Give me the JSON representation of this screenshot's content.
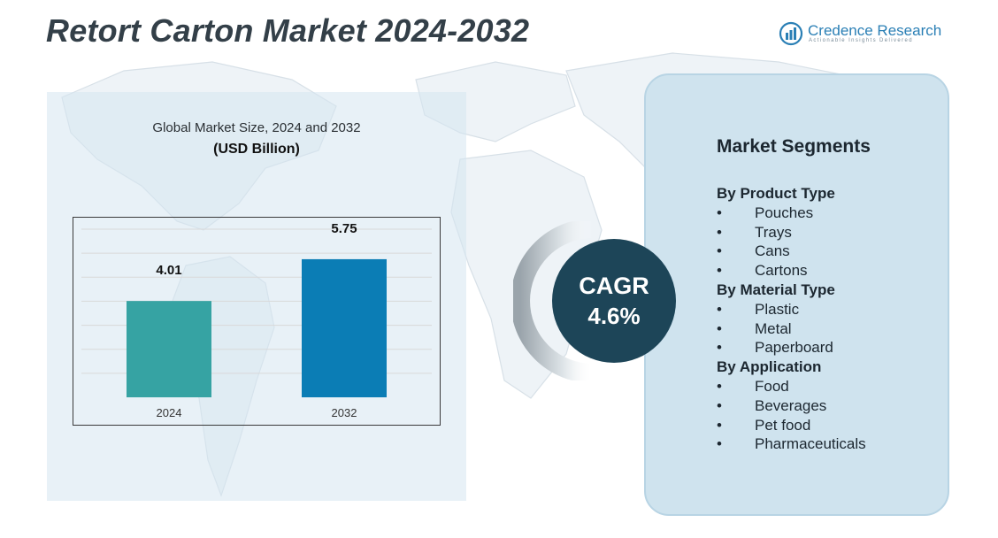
{
  "title": "Retort Carton Market 2024-2032",
  "logo": {
    "name": "Credence Research",
    "tagline": "Actionable Insights Delivered"
  },
  "chart_heading": "Global Market Size, 2024 and 2032",
  "chart_unit": "(USD Billion)",
  "chart_data": {
    "type": "bar",
    "title": "Global Market Size, 2024 and 2032",
    "ylabel": "(USD Billion)",
    "xlabel": "",
    "categories": [
      "2024",
      "2032"
    ],
    "values": [
      4.01,
      5.75
    ],
    "value_labels": [
      "4.01",
      "5.75"
    ],
    "colors": [
      "#36a3a3",
      "#0b7db5"
    ],
    "ylim": [
      0,
      7
    ],
    "grid": true
  },
  "cagr": {
    "label": "CAGR",
    "value": "4.6%"
  },
  "segments": {
    "title": "Market Segments",
    "groups": [
      {
        "title": "By Product Type",
        "items": [
          "Pouches",
          "Trays",
          "Cans",
          "Cartons"
        ]
      },
      {
        "title": "By Material Type",
        "items": [
          "Plastic",
          "Metal",
          "Paperboard"
        ]
      },
      {
        "title": "By Application",
        "items": [
          "Food",
          "Beverages",
          "Pet food",
          "Pharmaceuticals"
        ]
      }
    ]
  }
}
